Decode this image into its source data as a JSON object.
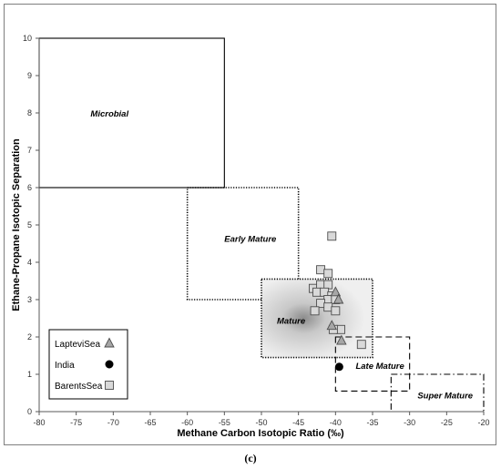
{
  "caption": "(c)",
  "chart_data": {
    "type": "scatter",
    "title": "",
    "xlabel": "Methane Carbon Isotopic Ratio (‰)",
    "ylabel": "Ethane-Propane Isotopic Separation",
    "xlim": [
      -80,
      -20
    ],
    "ylim": [
      0,
      10
    ],
    "x_ticks": [
      "-80",
      "-75",
      "-70",
      "-65",
      "-60",
      "-55",
      "-50",
      "-45",
      "-40",
      "-35",
      "-30",
      "-25",
      "-20"
    ],
    "y_ticks": [
      "0",
      "1",
      "2",
      "3",
      "4",
      "5",
      "6",
      "7",
      "8",
      "9",
      "10"
    ],
    "grid": false,
    "legend_position": "bottom-left",
    "zones": [
      {
        "label": "Microbial",
        "x": [
          -80,
          -55
        ],
        "y": [
          6,
          10
        ],
        "border": "solid",
        "fill": "none"
      },
      {
        "label": "Early Mature",
        "x": [
          -60,
          -45
        ],
        "y": [
          3,
          6
        ],
        "border": "dotted",
        "fill": "none"
      },
      {
        "label": "Mature",
        "x": [
          -50,
          -35
        ],
        "y": [
          1.45,
          3.55
        ],
        "border": "dotted",
        "fill": "gradient"
      },
      {
        "label": "Late Mature",
        "x": [
          -40,
          -30
        ],
        "y": [
          0.55,
          2.0
        ],
        "border": "dashed",
        "fill": "none"
      },
      {
        "label": "Super Mature",
        "x": [
          -32.5,
          -20
        ],
        "y": [
          0,
          1.0
        ],
        "border": "dashdot",
        "fill": "none"
      }
    ],
    "series": [
      {
        "name": "LapteviSea",
        "marker": "triangle",
        "color": "#a6a6a6",
        "points": [
          [
            -40.0,
            3.2
          ],
          [
            -39.6,
            3.0
          ],
          [
            -40.5,
            2.3
          ],
          [
            -39.2,
            1.9
          ]
        ]
      },
      {
        "name": "India",
        "marker": "circle",
        "color": "#000000",
        "points": [
          [
            -39.5,
            1.2
          ]
        ]
      },
      {
        "name": "BarentsSea",
        "marker": "square",
        "color": "#d9d9d9",
        "points": [
          [
            -40.5,
            4.7
          ],
          [
            -42.0,
            3.8
          ],
          [
            -41.0,
            3.7
          ],
          [
            -43.0,
            3.3
          ],
          [
            -42.0,
            3.4
          ],
          [
            -41.0,
            3.4
          ],
          [
            -42.5,
            3.2
          ],
          [
            -41.5,
            3.2
          ],
          [
            -40.5,
            3.1
          ],
          [
            -41.0,
            3.0
          ],
          [
            -40.0,
            3.0
          ],
          [
            -42.0,
            2.9
          ],
          [
            -41.0,
            2.8
          ],
          [
            -40.0,
            2.7
          ],
          [
            -42.8,
            2.7
          ],
          [
            -39.3,
            2.2
          ],
          [
            -40.3,
            2.2
          ],
          [
            -36.5,
            1.8
          ]
        ]
      }
    ]
  },
  "legend": [
    {
      "label": "LapteviSea",
      "marker": "triangle",
      "color": "#a6a6a6"
    },
    {
      "label": "India",
      "marker": "circle",
      "color": "#000000"
    },
    {
      "label": "BarentsSea",
      "marker": "square",
      "color": "#d9d9d9"
    }
  ]
}
